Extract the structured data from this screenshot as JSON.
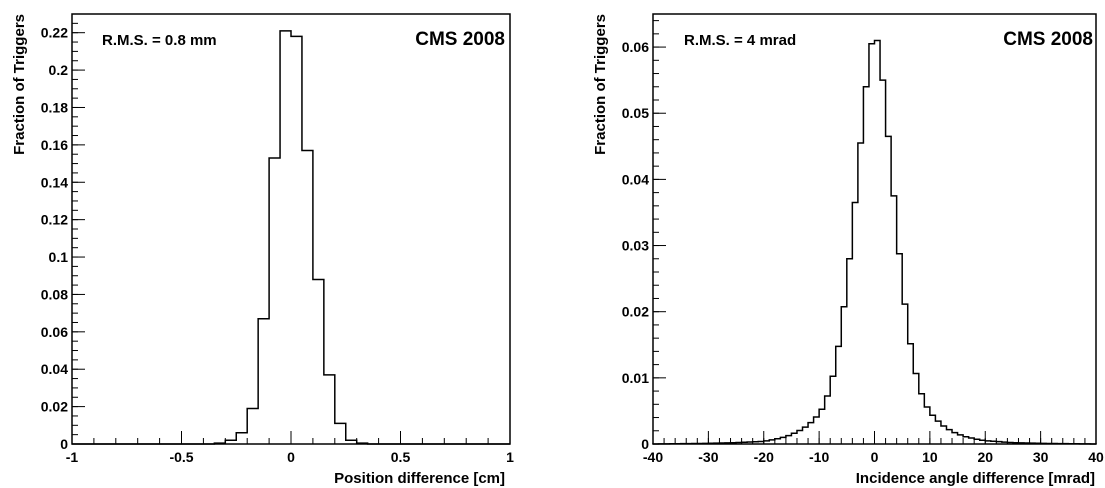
{
  "chart_data": [
    {
      "type": "histogram",
      "title": "",
      "xlabel": "Position difference [cm]",
      "ylabel": "Fraction of Triggers",
      "xlim": [
        -1,
        1
      ],
      "ylim": [
        0,
        0.23
      ],
      "x_ticks": [
        -1,
        -0.5,
        0,
        0.5,
        1
      ],
      "x_tick_labels": [
        "-1",
        "-0.5",
        "0",
        "0.5",
        "1"
      ],
      "y_ticks": [
        0,
        0.02,
        0.04,
        0.06,
        0.08,
        0.1,
        0.12,
        0.14,
        0.16,
        0.18,
        0.2,
        0.22
      ],
      "y_tick_labels": [
        "0",
        "0.02",
        "0.04",
        "0.06",
        "0.08",
        "0.1",
        "0.12",
        "0.14",
        "0.16",
        "0.18",
        "0.2",
        "0.22"
      ],
      "annotations": [
        "R.M.S. = 0.8 mm",
        "CMS 2008"
      ],
      "bin_edges": [
        -0.35,
        -0.3,
        -0.25,
        -0.2,
        -0.15,
        -0.1,
        -0.05,
        0.0,
        0.05,
        0.1,
        0.15,
        0.2,
        0.25,
        0.3,
        0.35
      ],
      "values": [
        0.0005,
        0.002,
        0.006,
        0.019,
        0.067,
        0.153,
        0.221,
        0.218,
        0.157,
        0.088,
        0.037,
        0.011,
        0.002,
        0.0005
      ],
      "grid": false,
      "legend": "none"
    },
    {
      "type": "histogram",
      "title": "",
      "xlabel": "Incidence angle difference [mrad]",
      "ylabel": "Fraction of Triggers",
      "xlim": [
        -40,
        40
      ],
      "ylim": [
        0,
        0.065
      ],
      "x_ticks": [
        -40,
        -30,
        -20,
        -10,
        0,
        10,
        20,
        30,
        40
      ],
      "x_tick_labels": [
        "-40",
        "-30",
        "-20",
        "-10",
        "0",
        "10",
        "20",
        "30",
        "40"
      ],
      "y_ticks": [
        0,
        0.01,
        0.02,
        0.03,
        0.04,
        0.05,
        0.06
      ],
      "y_tick_labels": [
        "0",
        "0.01",
        "0.02",
        "0.03",
        "0.04",
        "0.05",
        "0.06"
      ],
      "annotations": [
        "R.M.S. = 4 mrad",
        "CMS 2008"
      ],
      "curve_x": [
        -40,
        -30,
        -25,
        -20,
        -18,
        -16,
        -14,
        -12,
        -10,
        -9,
        -8,
        -7,
        -6,
        -5,
        -4,
        -3,
        -2,
        -1.5,
        -1,
        -0.5,
        0,
        0.5,
        1,
        1.5,
        2,
        3,
        4,
        5,
        6,
        7,
        8,
        9,
        10,
        12,
        14,
        16,
        18,
        20,
        25,
        30,
        40
      ],
      "curve_y": [
        0,
        0.0001,
        0.0002,
        0.0004,
        0.0007,
        0.0011,
        0.0018,
        0.0028,
        0.0045,
        0.006,
        0.0085,
        0.012,
        0.0175,
        0.024,
        0.032,
        0.041,
        0.05,
        0.054,
        0.058,
        0.0605,
        0.0615,
        0.061,
        0.059,
        0.055,
        0.051,
        0.042,
        0.033,
        0.0245,
        0.0178,
        0.0125,
        0.0088,
        0.0064,
        0.0048,
        0.003,
        0.0019,
        0.0012,
        0.0008,
        0.0005,
        0.0002,
        0.0001,
        0
      ],
      "bin_width": 1,
      "grid": false,
      "legend": "none"
    }
  ]
}
